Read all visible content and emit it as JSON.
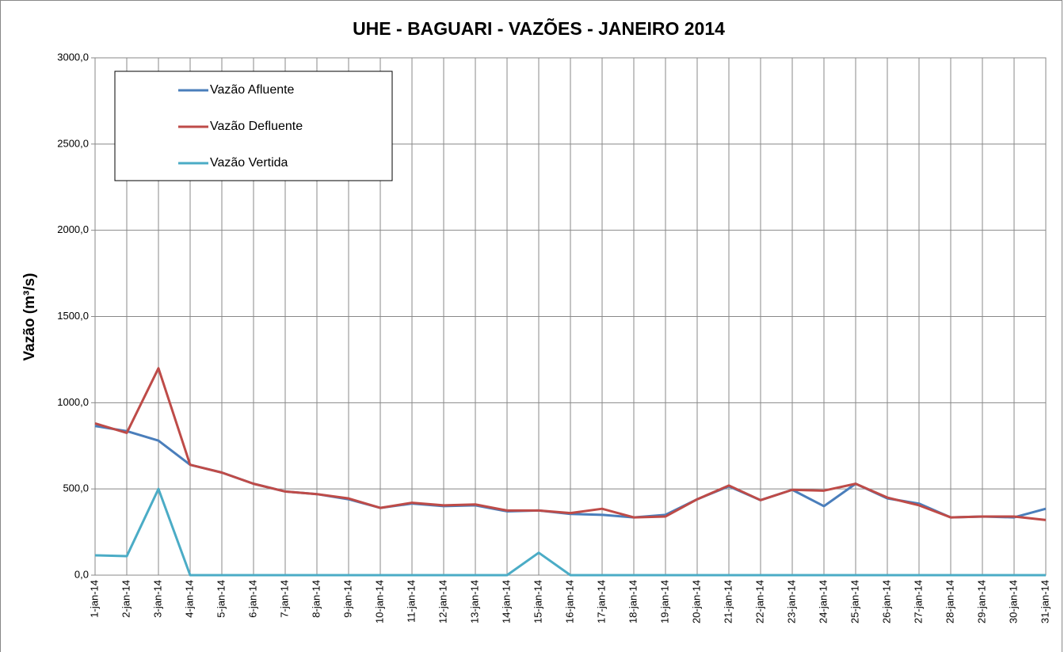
{
  "chart_data": {
    "type": "line",
    "title": "UHE - BAGUARI - VAZÕES - JANEIRO 2014",
    "y_label": "Vazão (m³/s)",
    "categories": [
      "1-jan-14",
      "2-jan-14",
      "3-jan-14",
      "4-jan-14",
      "5-jan-14",
      "6-jan-14",
      "7-jan-14",
      "8-jan-14",
      "9-jan-14",
      "10-jan-14",
      "11-jan-14",
      "12-jan-14",
      "13-jan-14",
      "14-jan-14",
      "15-jan-14",
      "16-jan-14",
      "17-jan-14",
      "18-jan-14",
      "19-jan-14",
      "20-jan-14",
      "21-jan-14",
      "22-jan-14",
      "23-jan-14",
      "24-jan-14",
      "25-jan-14",
      "26-jan-14",
      "27-jan-14",
      "28-jan-14",
      "29-jan-14",
      "30-jan-14",
      "31-jan-14"
    ],
    "series": [
      {
        "name": "Vazão Afluente",
        "color": "#4a7ebb",
        "values": [
          865,
          835,
          780,
          640,
          595,
          530,
          485,
          470,
          440,
          390,
          415,
          400,
          405,
          370,
          375,
          355,
          350,
          335,
          350,
          440,
          515,
          435,
          495,
          400,
          530,
          445,
          415,
          335,
          340,
          335,
          385
        ]
      },
      {
        "name": "Vazão Defluente",
        "color": "#be4b48",
        "values": [
          880,
          825,
          1200,
          640,
          595,
          530,
          485,
          470,
          445,
          390,
          420,
          405,
          410,
          375,
          375,
          360,
          385,
          335,
          340,
          440,
          520,
          435,
          495,
          490,
          530,
          450,
          405,
          335,
          340,
          340,
          320
        ]
      },
      {
        "name": "Vazão Vertida",
        "color": "#4bacc6",
        "values": [
          115,
          110,
          500,
          0,
          0,
          0,
          0,
          0,
          0,
          0,
          0,
          0,
          0,
          0,
          130,
          0,
          0,
          0,
          0,
          0,
          0,
          0,
          0,
          0,
          0,
          0,
          0,
          0,
          0,
          0,
          0
        ]
      }
    ],
    "ylim": [
      0,
      3000
    ],
    "yticks": [
      {
        "value": 0,
        "label": "0,0"
      },
      {
        "value": 500,
        "label": "500,0"
      },
      {
        "value": 1000,
        "label": "1000,0"
      },
      {
        "value": 1500,
        "label": "1500,0"
      },
      {
        "value": 2000,
        "label": "2000,0"
      },
      {
        "value": 2500,
        "label": "2500,0"
      },
      {
        "value": 3000,
        "label": "3000,0"
      }
    ],
    "grid": true,
    "legend": "upper left"
  }
}
